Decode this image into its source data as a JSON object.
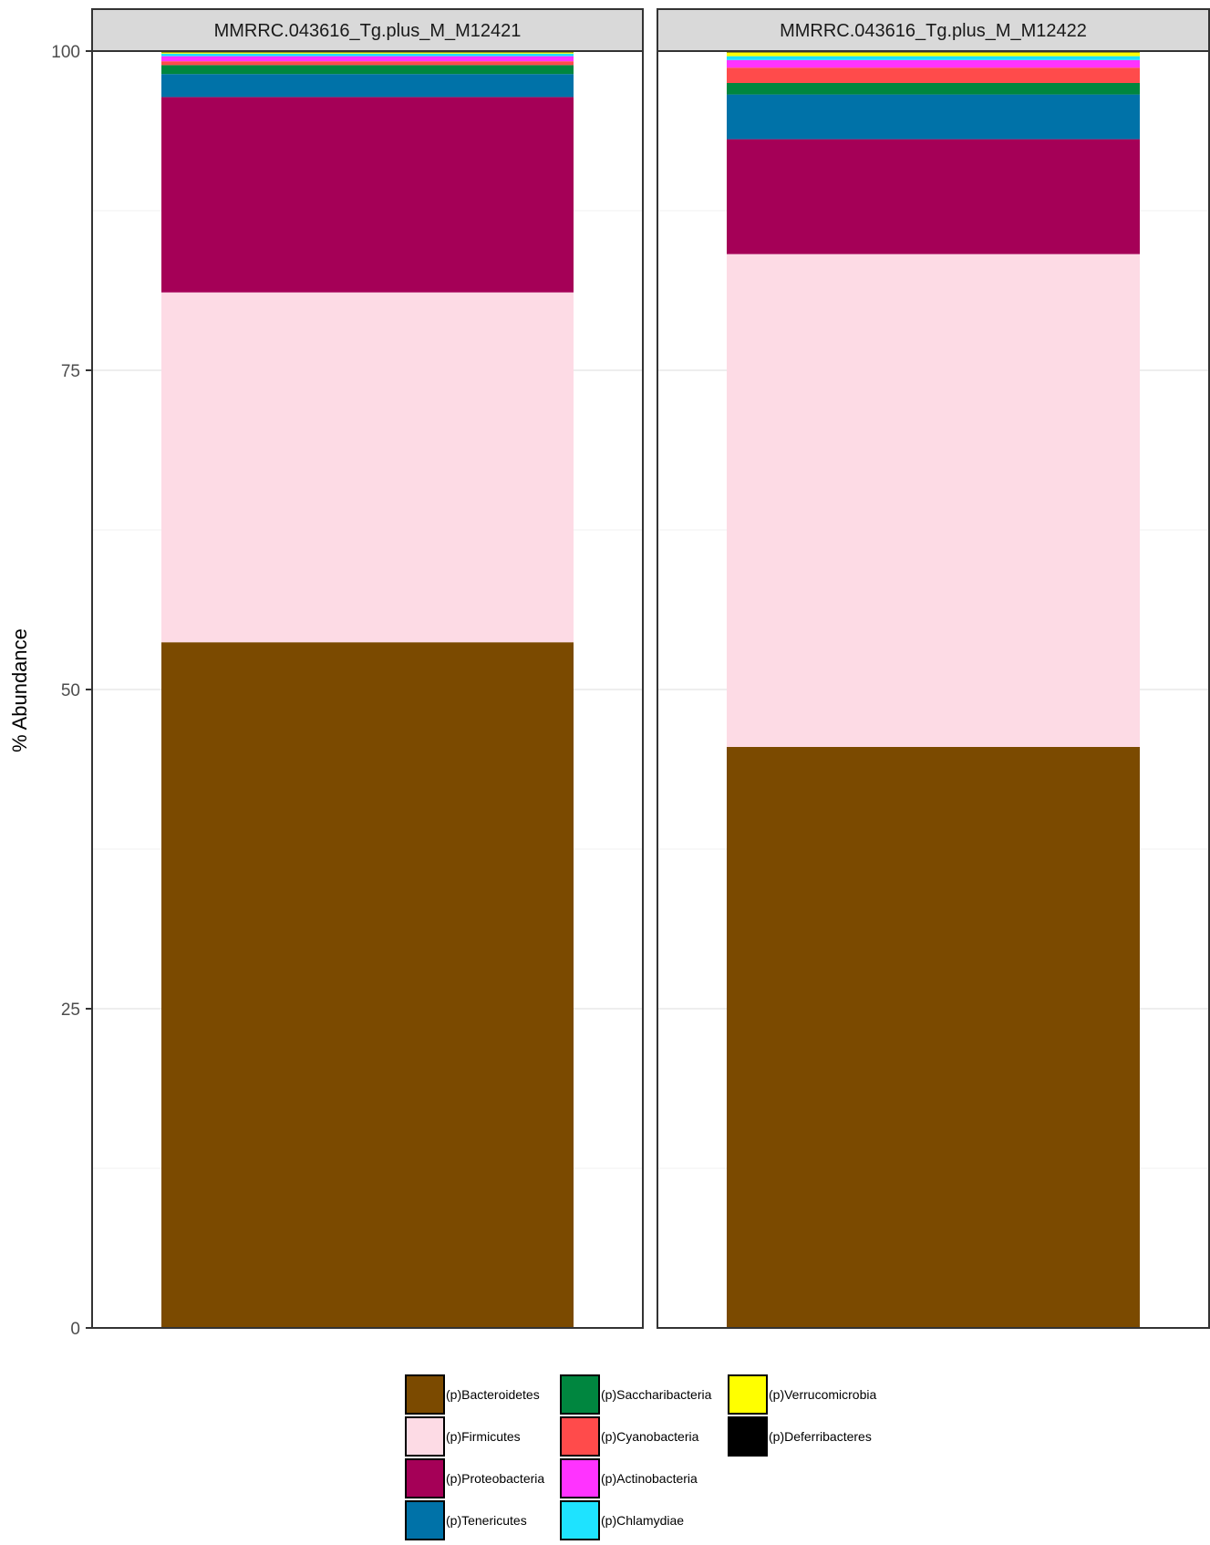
{
  "chart_data": {
    "type": "bar",
    "stacked": true,
    "xlabel": "",
    "ylabel": "% Abundance",
    "ylim": [
      0,
      100
    ],
    "yticks": [
      0,
      25,
      50,
      75,
      100
    ],
    "grid": true,
    "legend_position": "bottom",
    "panels": [
      "MMRRC.043616_Tg.plus_M_M12421",
      "MMRRC.043616_Tg.plus_M_M12422"
    ],
    "series": [
      {
        "name": "(p)Bacteroidetes",
        "color": "#7B4A00",
        "values": [
          53.7,
          45.5
        ]
      },
      {
        "name": "(p)Firmicutes",
        "color": "#FDDBE5",
        "values": [
          27.4,
          38.6
        ]
      },
      {
        "name": "(p)Proteobacteria",
        "color": "#A50057",
        "values": [
          15.3,
          9.0
        ]
      },
      {
        "name": "(p)Tenericutes",
        "color": "#0072A8",
        "values": [
          1.8,
          3.5
        ]
      },
      {
        "name": "(p)Saccharibacteria",
        "color": "#00863F",
        "values": [
          0.7,
          0.9
        ]
      },
      {
        "name": "(p)Cyanobacteria",
        "color": "#FF4B4B",
        "values": [
          0.3,
          1.2
        ]
      },
      {
        "name": "(p)Actinobacteria",
        "color": "#FF33FF",
        "values": [
          0.4,
          0.6
        ]
      },
      {
        "name": "(p)Chlamydiae",
        "color": "#1EE3FF",
        "values": [
          0.2,
          0.3
        ]
      },
      {
        "name": "(p)Verrucomicrobia",
        "color": "#FFFF00",
        "values": [
          0.1,
          0.3
        ]
      },
      {
        "name": "(p)Deferribacteres",
        "color": "#000000",
        "values": [
          0.1,
          0.1
        ]
      }
    ]
  }
}
